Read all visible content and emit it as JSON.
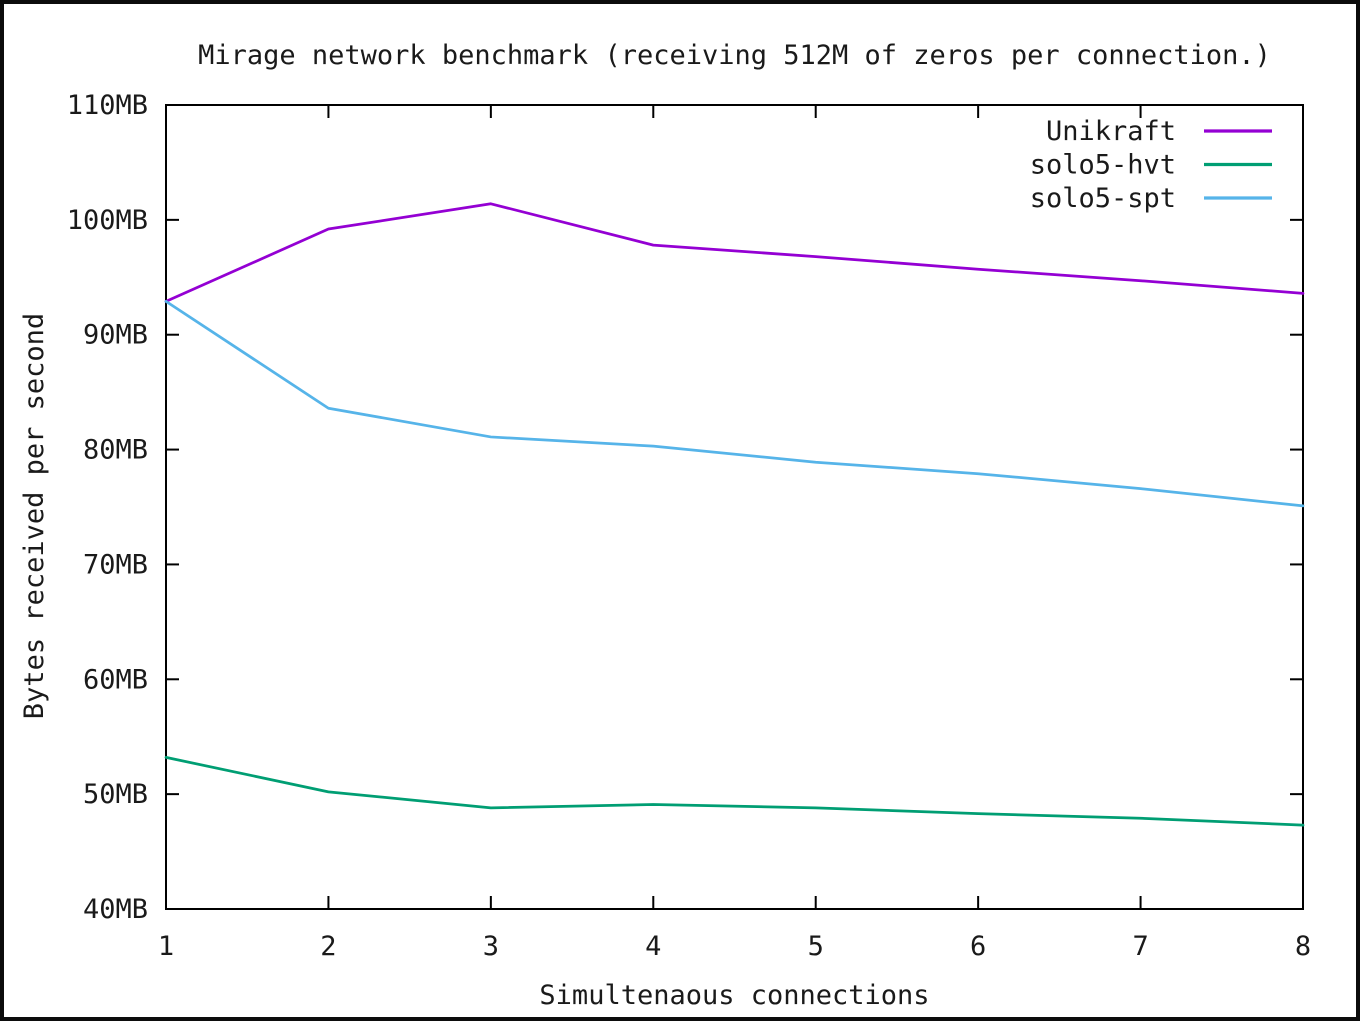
{
  "window": {
    "background": "#ffffff",
    "frame_border_color": "#0c0c0c",
    "axis_color": "#000000",
    "text_color": "#1a1a1a"
  },
  "chart_data": {
    "type": "line",
    "title": "Mirage network benchmark (receiving 512M of zeros per connection.)",
    "xlabel": "Simultenaous connections",
    "ylabel": "Bytes received per second",
    "x": [
      1,
      2,
      3,
      4,
      5,
      6,
      7,
      8
    ],
    "xlim": [
      1,
      8
    ],
    "ylim": [
      40,
      110
    ],
    "x_tick_labels": [
      "1",
      "2",
      "3",
      "4",
      "5",
      "6",
      "7",
      "8"
    ],
    "y_tick_values": [
      40,
      50,
      60,
      70,
      80,
      90,
      100,
      110
    ],
    "y_tick_labels": [
      "40MB",
      "50MB",
      "60MB",
      "70MB",
      "80MB",
      "90MB",
      "100MB",
      "110MB"
    ],
    "y_unit": "MB",
    "grid": false,
    "legend_position": "top-right-inside",
    "series": [
      {
        "name": "Unikraft",
        "color": "#9400d3",
        "values": [
          92.9,
          99.2,
          101.4,
          97.8,
          96.8,
          95.7,
          94.7,
          93.6
        ]
      },
      {
        "name": "solo5-hvt",
        "color": "#009e73",
        "values": [
          53.2,
          50.2,
          48.8,
          49.1,
          48.8,
          48.3,
          47.9,
          47.3
        ]
      },
      {
        "name": "solo5-spt",
        "color": "#56b4e9",
        "values": [
          92.9,
          83.6,
          81.1,
          80.3,
          78.9,
          77.9,
          76.6,
          75.1
        ]
      }
    ]
  }
}
